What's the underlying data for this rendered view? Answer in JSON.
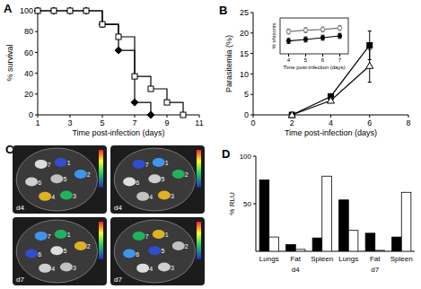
{
  "chart_data": [
    {
      "type": "line",
      "title": "A",
      "x_label": "Time post-infection (days)",
      "y_label": "% survival",
      "x": [
        1,
        2,
        3,
        4,
        5,
        6,
        7,
        8,
        9,
        10
      ],
      "xlim": [
        1,
        11
      ],
      "xticks": [
        1,
        3,
        5,
        7,
        9,
        11
      ],
      "ylim": [
        0,
        100
      ],
      "yticks": [
        0,
        20,
        40,
        60,
        80,
        100
      ],
      "line_style": "step",
      "series": [
        {
          "color": "#000000",
          "marker": "diamond",
          "values": [
            100,
            100,
            100,
            100,
            87,
            62,
            12,
            0,
            null,
            null
          ]
        },
        {
          "color": "#000000",
          "marker": "open-square",
          "values": [
            100,
            100,
            100,
            100,
            87,
            75,
            37,
            25,
            12,
            0
          ]
        }
      ]
    },
    {
      "type": "line",
      "title": "B",
      "x_label": "Time post-infection (days)",
      "y_label": "Parasitemia (%)",
      "x": [
        2,
        4,
        6
      ],
      "xlim": [
        0,
        8
      ],
      "xticks": [
        0,
        2,
        4,
        6,
        8
      ],
      "ylim": [
        0,
        25
      ],
      "yticks": [
        0,
        5,
        10,
        15,
        20,
        25
      ],
      "series": [
        {
          "color": "#000000",
          "marker": "filled-square",
          "values": [
            0,
            4.5,
            17
          ],
          "errors": [
            0,
            0.5,
            3.5
          ]
        },
        {
          "color": "#000000",
          "marker": "open-triangle",
          "values": [
            0,
            3.5,
            12
          ],
          "errors": [
            0,
            0.5,
            4
          ]
        }
      ]
    },
    {
      "type": "line",
      "x_label": "Time post-infection (days)",
      "y_label": "% shizonts",
      "x": [
        4,
        5,
        6,
        7
      ],
      "xlim": [
        3.5,
        7.5
      ],
      "xticks": [
        4,
        5,
        6,
        7
      ],
      "ylim": [
        0,
        1
      ],
      "tick_labels": "x",
      "series": [
        {
          "color": "#777777",
          "marker": "open-circle",
          "values": [
            0.62,
            0.66,
            0.68,
            0.72
          ],
          "errors": [
            0.07,
            0.07,
            0.07,
            0.07
          ]
        },
        {
          "color": "#000000",
          "marker": "filled-circle",
          "values": [
            0.36,
            0.4,
            0.45,
            0.5
          ],
          "errors": [
            0.07,
            0.07,
            0.07,
            0.07
          ]
        }
      ]
    },
    {
      "type": "image",
      "title": "C",
      "panels": [
        {
          "label": "d4",
          "wells": [
            "1",
            "2",
            "3",
            "4",
            "5",
            "6",
            "7"
          ]
        },
        {
          "label": "d4",
          "wells": [
            "1",
            "2",
            "3",
            "4",
            "5",
            "6",
            "7"
          ]
        },
        {
          "label": "d7",
          "wells": [
            "1",
            "2",
            "3",
            "4",
            "5",
            "6",
            "7"
          ]
        },
        {
          "label": "d7",
          "wells": [
            "1",
            "2",
            "3",
            "4",
            "5",
            "6",
            "7"
          ]
        }
      ]
    },
    {
      "type": "bar",
      "title": "D",
      "y_label": "% RLU",
      "categories": [
        "Lungs",
        "Fat",
        "Spleen",
        "Lungs",
        "Fat",
        "Spleen"
      ],
      "groups": [
        "d4",
        "d7"
      ],
      "ylim": [
        0,
        100
      ],
      "yticks": [
        50,
        100
      ],
      "series": [
        {
          "color": "#000000",
          "values": [
            75,
            7,
            14,
            54,
            19,
            15
          ]
        },
        {
          "color": "#ffffff",
          "values": [
            15,
            2,
            79,
            22,
            1,
            62
          ]
        }
      ]
    }
  ]
}
